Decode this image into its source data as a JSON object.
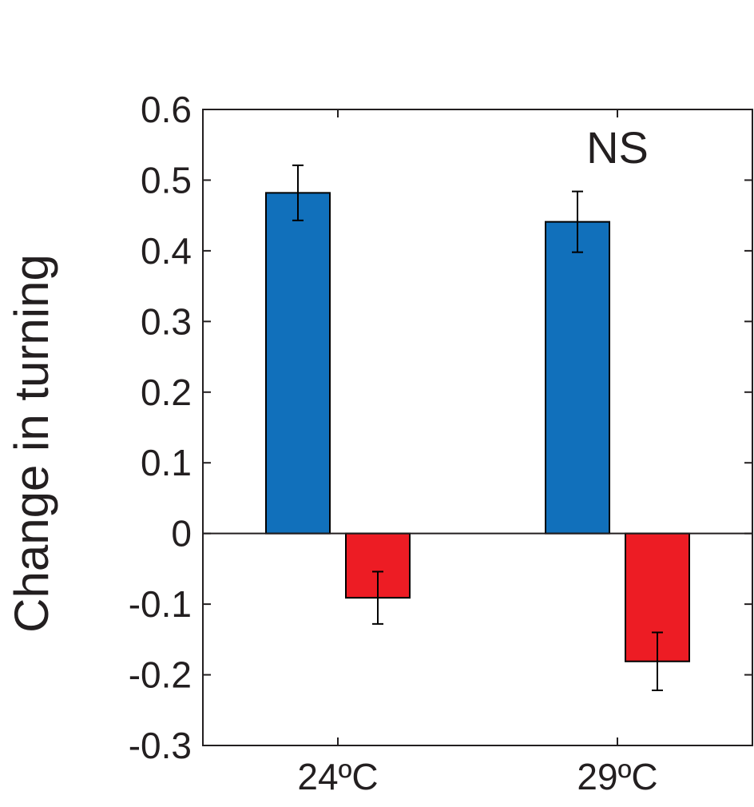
{
  "chart_data": {
    "type": "bar",
    "title": "",
    "xlabel": "",
    "ylabel": "Change in turning",
    "categories": [
      "24ºC",
      "29ºC"
    ],
    "series": [
      {
        "color": "#1170bb",
        "values": [
          0.482,
          0.441
        ],
        "error": [
          0.039,
          0.043
        ]
      },
      {
        "color": "#ed1c24",
        "values": [
          -0.091,
          -0.181
        ],
        "error": [
          0.037,
          0.041
        ]
      }
    ],
    "ylim": [
      -0.3,
      0.6
    ],
    "yticks": [
      0.6,
      0.5,
      0.4,
      0.3,
      0.2,
      0.1,
      0,
      -0.1,
      -0.2,
      -0.3
    ],
    "ytick_labels": [
      "0.6",
      "0.5",
      "0.4",
      "0.3",
      "0.2",
      "0.1",
      "0",
      "-0.1",
      "-0.2",
      "-0.3"
    ],
    "grid": false,
    "annotations": [
      {
        "text": "NS",
        "category": "29ºC"
      }
    ]
  }
}
